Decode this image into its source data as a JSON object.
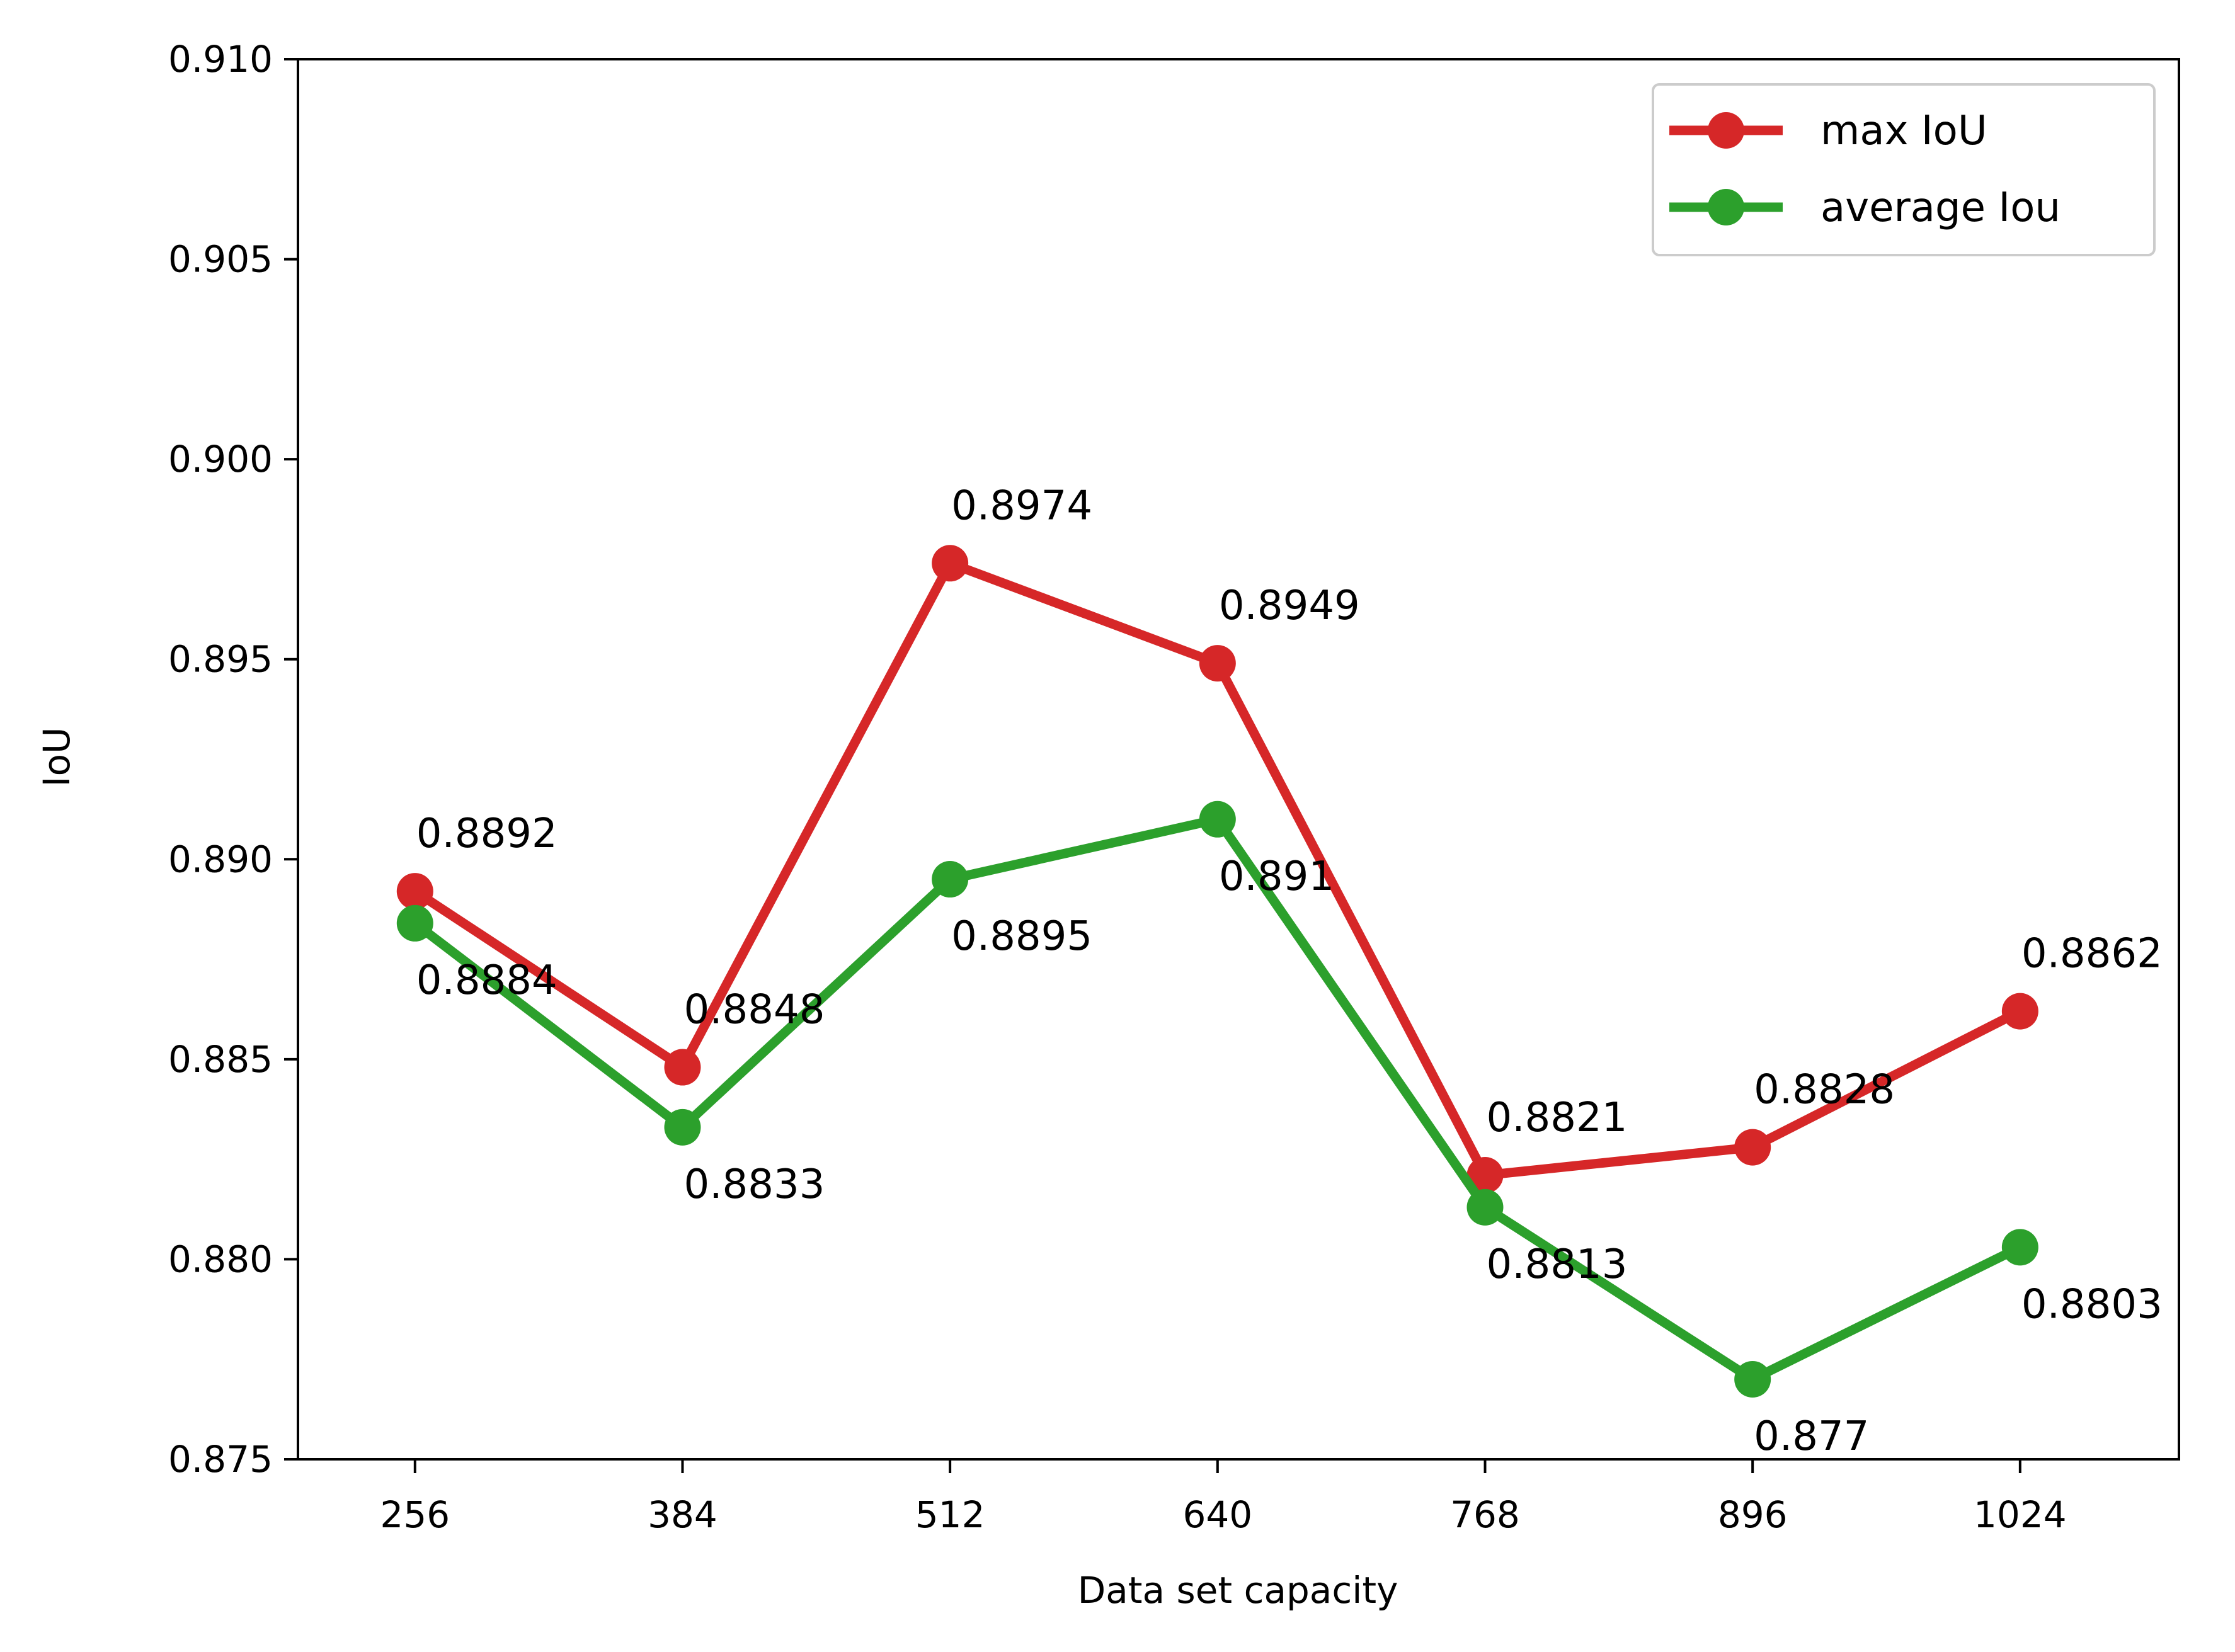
{
  "chart_data": {
    "type": "line",
    "title": "",
    "xlabel": "Data set capacity",
    "ylabel": "IoU",
    "categories": [
      "256",
      "384",
      "512",
      "640",
      "768",
      "896",
      "1024"
    ],
    "x": [
      256,
      384,
      512,
      640,
      768,
      896,
      1024
    ],
    "xlim": [
      200,
      1100
    ],
    "ylim": [
      0.875,
      0.91
    ],
    "yticks": [
      "0.875",
      "0.880",
      "0.885",
      "0.890",
      "0.895",
      "0.900",
      "0.905",
      "0.910"
    ],
    "grid": false,
    "legend_position": "top-right",
    "series": [
      {
        "name": "max IoU",
        "color": "#d62728",
        "values": [
          0.8892,
          0.8848,
          0.8974,
          0.8949,
          0.8821,
          0.8828,
          0.8862
        ],
        "labels": [
          "0.8892",
          "0.8848",
          "0.8974",
          "0.8949",
          "0.8821",
          "0.8828",
          "0.8862"
        ],
        "label_side": "above"
      },
      {
        "name": "average Iou",
        "color": "#2ca02c",
        "values": [
          0.8884,
          0.8833,
          0.8895,
          0.891,
          0.8813,
          0.877,
          0.8803
        ],
        "labels": [
          "0.8884",
          "0.8833",
          "0.8895",
          "0.891",
          "0.8813",
          "0.877",
          "0.8803"
        ],
        "label_side": "below"
      }
    ]
  }
}
